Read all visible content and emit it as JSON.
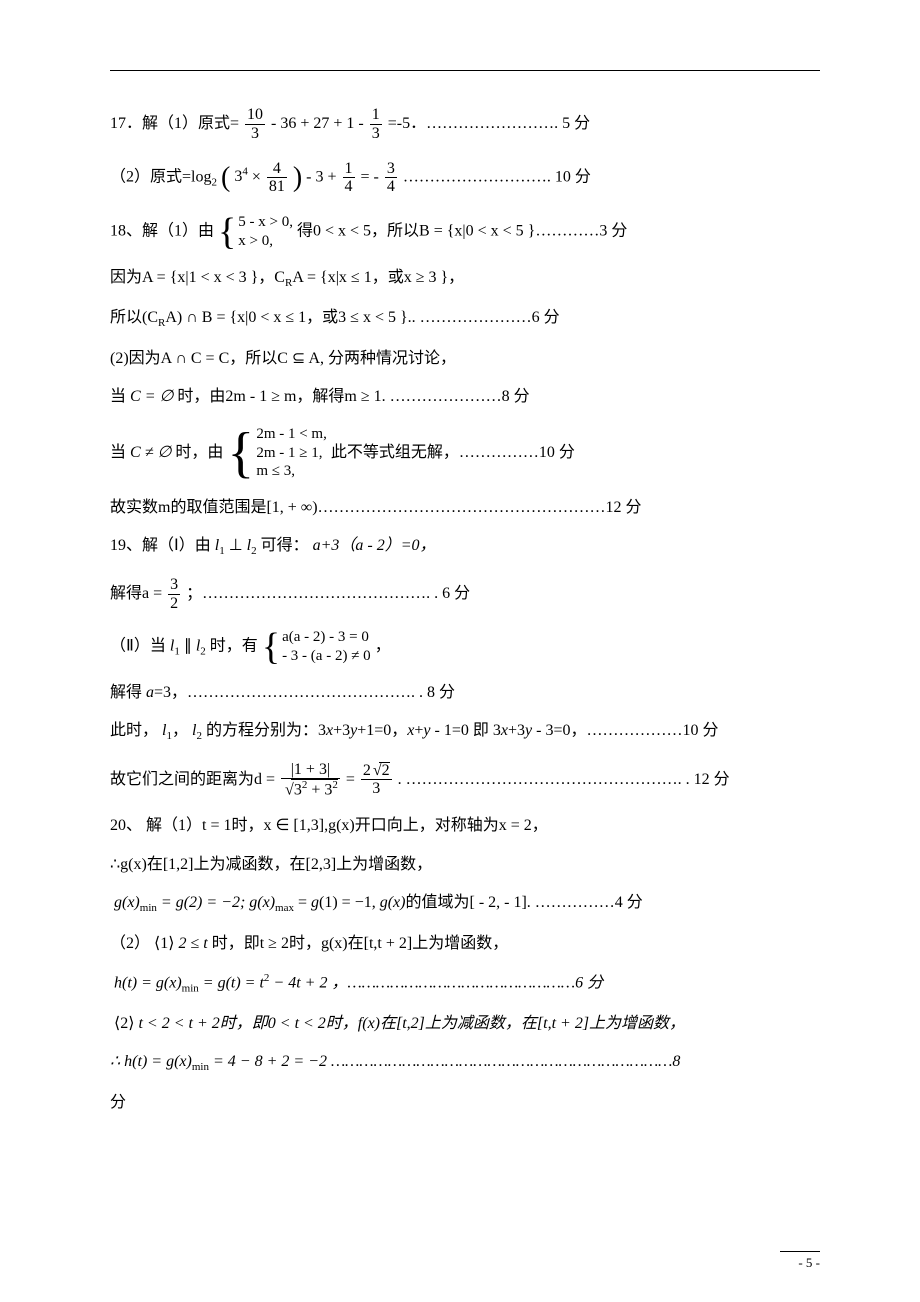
{
  "page_number": "- 5 -",
  "lines": {
    "q17_1_prefix": "17．解（1）原式=",
    "q17_1_frac1_num": "10",
    "q17_1_frac1_den": "3",
    "q17_1_mid": " - 36 + 27 + 1 - ",
    "q17_1_frac2_num": "1",
    "q17_1_frac2_den": "3",
    "q17_1_suffix": "=-5．…………………….  5 分",
    "q17_2_prefix": "（2）原式=log",
    "q17_2_logbase": "2",
    "q17_2_paren_l": "(",
    "q17_2_inner1": "3",
    "q17_2_inner1_sup": "4",
    "q17_2_inner2": " × ",
    "q17_2_frac_num": "4",
    "q17_2_frac_den": "81",
    "q17_2_paren_r": ")",
    "q17_2_mid": " - 3 + ",
    "q17_2_fracA_num": "1",
    "q17_2_fracA_den": "4",
    "q17_2_eq": " = - ",
    "q17_2_fracB_num": "3",
    "q17_2_fracB_den": "4",
    "q17_2_suffix": "………………………. 10 分",
    "q18_1_prefix": "18、解（1）由",
    "q18_1_sys_l1": "5 - x > 0,",
    "q18_1_sys_l2": "   x > 0,",
    "q18_1_after": " 得0 < x < 5，所以B = {x|0 < x < 5 }…………3 分",
    "q18_A": "因为A = {x|1 < x < 3 }，C",
    "q18_A_sub": "R",
    "q18_A2": "A = {x|x ≤ 1，或x ≥ 3 }，",
    "q18_inter": "所以(C",
    "q18_inter_sub": "R",
    "q18_inter2": "A) ∩ B = {x|0 < x ≤ 1，或3 ≤ x < 5 }.. …………………6 分",
    "q18_2": "(2)因为A ∩ C = C，所以C ⊆ A, 分两种情况讨论，",
    "q18_case1_pre": "当",
    "q18_case1_cond": "C = ∅",
    "q18_case1_post": "时，由2m - 1 ≥ m，解得m ≥ 1. …………………8 分",
    "q18_case2_pre": "当",
    "q18_case2_cond": "C ≠ ∅",
    "q18_case2_mid": "时，由",
    "q18_case2_l1": "2m - 1 < m,",
    "q18_case2_l2": "2m - 1 ≥ 1,",
    "q18_case2_l3": "   m ≤ 3,",
    "q18_case2_post": " 此不等式组无解，……………10 分",
    "q18_range": "故实数m的取值范围是[1, + ∞)………………………………………………12 分",
    "q19_1a": "19、解（Ⅰ）由 ",
    "q19_l1": "l",
    "q19_l1sub": "1",
    "q19_perp": "⊥",
    "q19_l2": "l",
    "q19_l2sub": "2",
    "q19_1b": "可得：",
    "q19_eq1": "a+3（a - 2）=0，",
    "q19_sol_a_pre": "解得a = ",
    "q19_sol_a_num": "3",
    "q19_sol_a_den": "2",
    "q19_sol_a_post": "；……………………………………. .  6 分",
    "q19_2_pre": "（Ⅱ）当 ",
    "q19_2_par": "∥",
    "q19_2_mid": " 时，有",
    "q19_2_sys_l1": "a(a - 2) - 3 = 0",
    "q19_2_sys_l2": " - 3 - (a - 2) ≠ 0",
    "q19_2_post": "，",
    "q19_a3": "解得 a=3，……………………………………. .  8 分",
    "q19_lines_pre": "此时，",
    "q19_lines_mid": "的方程分别为：3x+3y+1=0，x+y - 1=0 即 3x+3y - 3=0，………………10 分",
    "q19_dist_pre": "故它们之间的距离为d = ",
    "q19_dist_num": "|1 + 3|",
    "q19_dist_den_pre": "3",
    "q19_dist_den_sup1": "2",
    "q19_dist_den_mid": " + 3",
    "q19_dist_den_sup2": "2",
    "q19_dist_eq": " = ",
    "q19_dist2_num_pre": "2",
    "q19_dist2_num_sqrt": "2",
    "q19_dist2_den": "3",
    "q19_dist_post": ".  ……………………………………………. .  12 分",
    "q20_1a": "20、 解（1）t = 1时，x ∈ [1,3],g(x)开口向上，对称轴为x = 2，",
    "q20_1b": "∴g(x)在[1,2]上为减函数，在[2,3]上为增函数，",
    "q20_min_pre": "g(x)",
    "q20_min_sub": "min",
    "q20_min_mid": " = g(2) = −2; g(x)",
    "q20_max_sub": "max",
    "q20_min_post": " = g(1) = −1,  g(x)的值域为[ - 2, - 1].    ……………4 分",
    "q20_2_pre": "（2）",
    "q20_case1_lbl": "⟨1⟩",
    "q20_2_cond": "2 ≤ t",
    "q20_2_mid": "时，即t ≥ 2时，g(x)在[t,t + 2]上为增函数，",
    "q20_ht_pre": "h(t) = g(x)",
    "q20_ht_sub": "min",
    "q20_ht_mid": " = g(t) = t",
    "q20_ht_sup": "2",
    "q20_ht_post": " − 4t + 2 ，…………………………………………6 分",
    "q20_case2_lbl": "⟨2⟩",
    "q20_case2": "t < 2 < t + 2时，即0 < t < 2时，f(x)在[t,2]上为减函数，在[t,t + 2]上为增函数，",
    "q20_ht2_pre": "∴ h(t) = g(x)",
    "q20_ht2_sub": "min",
    "q20_ht2_post": " = 4 − 8 + 2 = −2 ………………………………………………………………8",
    "q20_fen": "分"
  }
}
